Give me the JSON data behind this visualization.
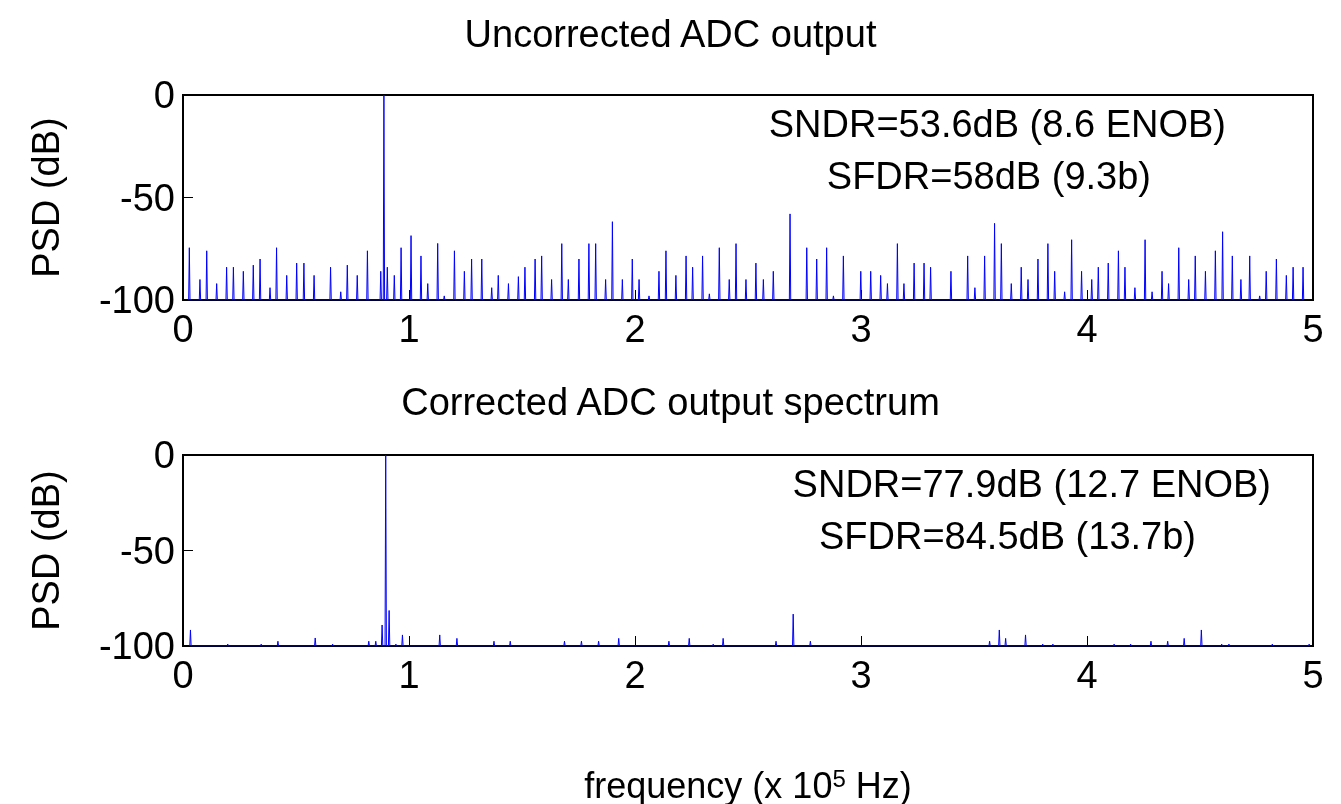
{
  "chart_data": [
    {
      "type": "line",
      "title": "Uncorrected ADC output",
      "ylabel": "PSD (dB)",
      "annotations": [
        "SNDR=53.6dB (8.6 ENOB)",
        "SFDR=58dB (9.3b)"
      ],
      "series": [
        {
          "color": "#0000ff",
          "x": [
            0.025,
            0.028,
            0.031,
            0.072,
            0.075,
            0.078,
            0.102,
            0.105,
            0.108,
            0.146,
            0.149,
            0.152,
            0.19,
            0.193,
            0.196,
            0.22,
            0.223,
            0.226,
            0.264,
            0.267,
            0.27,
            0.308,
            0.311,
            0.314,
            0.338,
            0.341,
            0.344,
            0.382,
            0.385,
            0.388,
            0.411,
            0.414,
            0.417,
            0.456,
            0.459,
            0.462,
            0.5,
            0.503,
            0.506,
            0.532,
            0.535,
            0.538,
            0.577,
            0.58,
            0.583,
            0.65,
            0.653,
            0.656,
            0.695,
            0.698,
            0.701,
            0.724,
            0.727,
            0.73,
            0.768,
            0.771,
            0.774,
            0.813,
            0.816,
            0.819,
            0.872,
            0.875,
            0.878,
            0.886,
            0.889,
            0.892,
            0.901,
            0.904,
            0.907,
            0.932,
            0.935,
            0.938,
            0.962,
            0.965,
            0.968,
            1.006,
            1.009,
            1.012,
            1.05,
            1.053,
            1.056,
            1.08,
            1.083,
            1.086,
            1.124,
            1.127,
            1.13,
            1.153,
            1.156,
            1.159,
            1.198,
            1.201,
            1.204,
            1.242,
            1.245,
            1.248,
            1.274,
            1.277,
            1.28,
            1.319,
            1.322,
            1.325,
            1.363,
            1.366,
            1.369,
            1.392,
            1.395,
            1.398,
            1.437,
            1.44,
            1.443,
            1.481,
            1.484,
            1.487,
            1.51,
            1.513,
            1.516,
            1.555,
            1.558,
            1.561,
            1.584,
            1.587,
            1.59,
            1.628,
            1.631,
            1.634,
            1.673,
            1.676,
            1.679,
            1.702,
            1.705,
            1.708,
            1.749,
            1.752,
            1.755,
            1.793,
            1.796,
            1.799,
            1.823,
            1.826,
            1.829,
            1.867,
            1.87,
            1.873,
            1.897,
            1.9,
            1.903,
            1.941,
            1.944,
            1.947,
            1.985,
            1.988,
            1.991,
            2.015,
            2.018,
            2.021,
            2.059,
            2.062,
            2.065,
            2.103,
            2.106,
            2.109,
            2.134,
            2.137,
            2.14,
            2.178,
            2.181,
            2.184,
            2.223,
            2.226,
            2.229,
            2.252,
            2.255,
            2.258,
            2.296,
            2.299,
            2.302,
            2.326,
            2.329,
            2.332,
            2.37,
            2.373,
            2.376,
            2.414,
            2.417,
            2.42,
            2.444,
            2.447,
            2.45,
            2.488,
            2.491,
            2.494,
            2.532,
            2.535,
            2.538,
            2.565,
            2.568,
            2.571,
            2.609,
            2.612,
            2.615,
            2.683,
            2.686,
            2.689,
            2.757,
            2.76,
            2.763,
            2.801,
            2.804,
            2.807,
            2.845,
            2.848,
            2.851,
            2.875,
            2.878,
            2.881,
            2.919,
            2.922,
            2.925,
            2.996,
            2.999,
            3.002,
            3.04,
            3.043,
            3.046,
            3.084,
            3.087,
            3.09,
            3.114,
            3.117,
            3.12,
            3.158,
            3.161,
            3.164,
            3.187,
            3.19,
            3.193,
            3.232,
            3.235,
            3.238,
            3.276,
            3.279,
            3.282,
            3.305,
            3.308,
            3.311,
            3.395,
            3.398,
            3.401,
            3.469,
            3.472,
            3.475,
            3.501,
            3.504,
            3.507,
            3.544,
            3.547,
            3.55,
            3.588,
            3.591,
            3.594,
            3.618,
            3.621,
            3.624,
            3.662,
            3.665,
            3.668,
            3.706,
            3.709,
            3.712,
            3.736,
            3.739,
            3.742,
            3.78,
            3.783,
            3.786,
            3.824,
            3.827,
            3.83,
            3.854,
            3.857,
            3.86,
            3.898,
            3.901,
            3.904,
            3.929,
            3.932,
            3.935,
            3.973,
            3.976,
            3.979,
            4.018,
            4.021,
            4.024,
            4.047,
            4.05,
            4.053,
            4.091,
            4.094,
            4.097,
            4.136,
            4.139,
            4.142,
            4.165,
            4.168,
            4.171,
            4.209,
            4.212,
            4.215,
            4.254,
            4.257,
            4.26,
            4.285,
            4.288,
            4.291,
            4.329,
            4.332,
            4.335,
            4.358,
            4.361,
            4.364,
            4.403,
            4.406,
            4.409,
            4.447,
            4.45,
            4.453,
            4.476,
            4.479,
            4.482,
            4.521,
            4.524,
            4.527,
            4.565,
            4.568,
            4.571,
            4.597,
            4.6,
            4.603,
            4.64,
            4.643,
            4.646,
            4.678,
            4.681,
            4.684,
            4.717,
            4.72,
            4.723,
            4.761,
            4.764,
            4.767,
            4.79,
            4.793,
            4.796,
            4.835,
            4.838,
            4.841,
            4.879,
            4.882,
            4.885,
            4.909,
            4.912,
            4.915,
            4.953,
            4.956,
            4.959
          ],
          "values": [
            -100,
            -74.5,
            -100,
            -100,
            -90,
            -100,
            -100,
            -76,
            -100,
            -100,
            -92,
            -100,
            -100,
            -84,
            -100,
            -100,
            -84,
            -100,
            -100,
            -86,
            -100,
            -100,
            -83,
            -100,
            -100,
            -80,
            -100,
            -100,
            -94,
            -100,
            -100,
            -74.5,
            -100,
            -100,
            -88,
            -100,
            -100,
            -82,
            -100,
            -100,
            -82,
            -100,
            -100,
            -88,
            -100,
            -100,
            -84,
            -100,
            -100,
            -96,
            -100,
            -100,
            -83,
            -100,
            -100,
            -88,
            -100,
            -100,
            -76,
            -100,
            -100,
            -86,
            -100,
            -100,
            0,
            -100,
            -100,
            -84,
            -100,
            -100,
            -88,
            -100,
            -100,
            -74.5,
            -100,
            -100,
            -68.6,
            -100,
            -100,
            -78.5,
            -100,
            -100,
            -92,
            -100,
            -100,
            -72.4,
            -100,
            -100,
            -98,
            -100,
            -100,
            -76,
            -100,
            -100,
            -86,
            -100,
            -100,
            -80,
            -100,
            -100,
            -80,
            -100,
            -100,
            -94,
            -100,
            -100,
            -88,
            -100,
            -100,
            -92,
            -100,
            -100,
            -88.6,
            -100,
            -100,
            -84,
            -100,
            -100,
            -80,
            -100,
            -100,
            -78.5,
            -100,
            -100,
            -90,
            -100,
            -100,
            -72.5,
            -100,
            -100,
            -90,
            -100,
            -100,
            -80,
            -100,
            -100,
            -72.5,
            -100,
            -100,
            -72.5,
            -100,
            -100,
            -90,
            -100,
            -100,
            -61.8,
            -100,
            -100,
            -90,
            -100,
            -100,
            -80,
            -100,
            -100,
            -90,
            -100,
            -100,
            -98,
            -100,
            -100,
            -86,
            -100,
            -100,
            -76,
            -100,
            -100,
            -88,
            -100,
            -100,
            -78.5,
            -100,
            -100,
            -84,
            -100,
            -100,
            -78.5,
            -100,
            -100,
            -97,
            -100,
            -100,
            -74.5,
            -100,
            -100,
            -90,
            -100,
            -100,
            -72.5,
            -100,
            -100,
            -90,
            -100,
            -100,
            -82,
            -100,
            -100,
            -90,
            -100,
            -100,
            -86,
            -100,
            -100,
            -58,
            -100,
            -100,
            -74.5,
            -100,
            -100,
            -80,
            -100,
            -100,
            -74.5,
            -100,
            -100,
            -98,
            -100,
            -100,
            -78.5,
            -100,
            -100,
            -86,
            -100,
            -100,
            -86,
            -100,
            -100,
            -88,
            -100,
            -100,
            -92,
            -100,
            -100,
            -72.5,
            -100,
            -100,
            -92,
            -100,
            -100,
            -82,
            -100,
            -100,
            -82,
            -100,
            -100,
            -84,
            -100,
            -100,
            -86,
            -100,
            -100,
            -78.5,
            -100,
            -100,
            -94,
            -100,
            -100,
            -78.5,
            -100,
            -100,
            -62.6,
            -100,
            -100,
            -72.5,
            -100,
            -100,
            -92,
            -100,
            -100,
            -84,
            -100,
            -100,
            -90,
            -100,
            -100,
            -80,
            -100,
            -100,
            -72.5,
            -100,
            -100,
            -86,
            -100,
            -100,
            -96,
            -100,
            -100,
            -70.6,
            -100,
            -100,
            -86,
            -100,
            -100,
            -90,
            -100,
            -100,
            -84,
            -100,
            -100,
            -82,
            -100,
            -100,
            -76,
            -100,
            -100,
            -84,
            -100,
            -100,
            -94,
            -100,
            -100,
            -70.6,
            -100,
            -100,
            -96,
            -100,
            -100,
            -86,
            -100,
            -100,
            -92,
            -100,
            -100,
            -74.5,
            -100,
            -100,
            -90,
            -100,
            -100,
            -78.5,
            -100,
            -100,
            -86,
            -100,
            -100,
            -76,
            -100,
            -100,
            -66.7,
            -100,
            -100,
            -78.5,
            -100,
            -100,
            -90,
            -100,
            -100,
            -78.5,
            -100,
            -100,
            -98,
            -100,
            -100,
            -86,
            -100,
            -100,
            -80,
            -100,
            -100,
            -88,
            -100,
            -100,
            -84,
            -100,
            -100,
            -84,
            -100
          ]
        }
      ],
      "xlim": [
        0,
        5
      ],
      "xticks": [
        0,
        1,
        2,
        3,
        4,
        5
      ],
      "ylim": [
        -100,
        0
      ],
      "yticks": [
        -100,
        -50,
        0
      ],
      "marker": "none",
      "grid": false
    },
    {
      "type": "line",
      "title": "Corrected ADC output spectrum",
      "xlabel": "frequency (x 10$^{5}$ Hz)",
      "ylabel": "PSD (dB)",
      "annotations": [
        "SNDR=77.9dB (12.7 ENOB)",
        "SFDR=84.5dB (13.7b)"
      ],
      "series": [
        {
          "color": "#0000ff",
          "x": [
            0.03,
            0.033,
            0.036,
            0.195,
            0.198,
            0.201,
            0.343,
            0.346,
            0.349,
            0.417,
            0.42,
            0.423,
            0.582,
            0.585,
            0.588,
            0.659,
            0.662,
            0.665,
            0.819,
            0.822,
            0.825,
            0.85,
            0.853,
            0.856,
            0.878,
            0.881,
            0.884,
            0.894,
            0.897,
            0.9,
            0.909,
            0.912,
            0.915,
            0.939,
            0.942,
            0.945,
            0.968,
            0.971,
            0.974,
            1.133,
            1.136,
            1.139,
            1.209,
            1.212,
            1.215,
            1.373,
            1.376,
            1.379,
            1.445,
            1.448,
            1.451,
            1.685,
            1.688,
            1.691,
            1.76,
            1.763,
            1.766,
            1.836,
            1.839,
            1.842,
            1.925,
            1.928,
            1.931,
            2.147,
            2.15,
            2.153,
            2.237,
            2.24,
            2.243,
            2.343,
            2.346,
            2.349,
            2.387,
            2.39,
            2.393,
            2.621,
            2.624,
            2.627,
            2.697,
            2.7,
            2.703,
            2.773,
            2.776,
            2.779,
            3.566,
            3.569,
            3.572,
            3.609,
            3.612,
            3.615,
            3.637,
            3.64,
            3.643,
            3.725,
            3.728,
            3.731,
            3.801,
            3.804,
            3.807,
            3.846,
            3.849,
            3.852,
            4.117,
            4.12,
            4.123,
            4.19,
            4.193,
            4.196,
            4.28,
            4.283,
            4.286,
            4.354,
            4.357,
            4.36,
            4.427,
            4.43,
            4.433,
            4.503,
            4.506,
            4.509,
            4.593,
            4.596,
            4.599,
            4.625,
            4.628,
            4.631,
            4.817,
            4.82,
            4.823,
            4.98,
            4.983,
            4.986
          ],
          "values": [
            -100,
            -91.6,
            -100,
            -100,
            -99,
            -100,
            -100,
            -99,
            -100,
            -100,
            -97.5,
            -100,
            -100,
            -95.8,
            -100,
            -100,
            -99,
            -100,
            -100,
            -97.5,
            -100,
            -100,
            -97.5,
            -100,
            -100,
            -89,
            -100,
            -100,
            0,
            -100,
            -100,
            -81.4,
            -100,
            -100,
            -99,
            -100,
            -100,
            -94.2,
            -100,
            -100,
            -94.2,
            -100,
            -100,
            -96,
            -100,
            -100,
            -97.5,
            -100,
            -100,
            -97.5,
            -100,
            -100,
            -97.5,
            -100,
            -100,
            -97.5,
            -100,
            -100,
            -97.5,
            -100,
            -100,
            -96,
            -100,
            -100,
            -97.5,
            -100,
            -100,
            -96,
            -100,
            -100,
            -99,
            -100,
            -100,
            -96,
            -100,
            -100,
            -97.5,
            -100,
            -100,
            -83.3,
            -100,
            -100,
            -97.5,
            -100,
            -100,
            -97.5,
            -100,
            -100,
            -91.6,
            -100,
            -100,
            -96,
            -100,
            -100,
            -94.2,
            -100,
            -100,
            -99,
            -100,
            -100,
            -99,
            -100,
            -100,
            -99,
            -100,
            -100,
            -99,
            -100,
            -100,
            -97.5,
            -100,
            -100,
            -97.5,
            -100,
            -100,
            -96,
            -100,
            -100,
            -91.6,
            -100,
            -100,
            -99,
            -100,
            -100,
            -99,
            -100,
            -100,
            -99,
            -100,
            -100,
            -99,
            -100
          ]
        }
      ],
      "xlim": [
        0,
        5
      ],
      "xticks": [
        0,
        1,
        2,
        3,
        4,
        5
      ],
      "ylim": [
        -100,
        0
      ],
      "yticks": [
        -100,
        -50,
        0
      ],
      "marker": "none",
      "grid": false
    }
  ]
}
